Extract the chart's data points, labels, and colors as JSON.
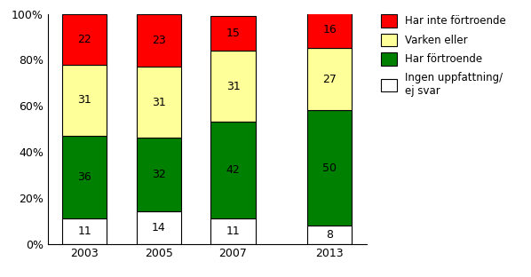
{
  "categories": [
    "2003",
    "2005",
    "2007",
    "2013"
  ],
  "segments": {
    "ingen": [
      11,
      14,
      11,
      8
    ],
    "har_fortroende": [
      36,
      32,
      42,
      50
    ],
    "varken": [
      31,
      31,
      31,
      27
    ],
    "har_inte": [
      22,
      23,
      15,
      16
    ]
  },
  "colors": {
    "ingen": "#ffffff",
    "har_fortroende": "#008000",
    "varken": "#ffff99",
    "har_inte": "#ff0000"
  },
  "legend_labels": [
    "Har inte förtroende",
    "Varken eller",
    "Har förtroende",
    "Ingen uppfattning/\nej svar"
  ],
  "bar_width": 0.6,
  "bar_positions": [
    0,
    1,
    2,
    3.3
  ],
  "ylim": [
    0,
    100
  ],
  "yticks": [
    0,
    20,
    40,
    60,
    80,
    100
  ],
  "yticklabels": [
    "0%",
    "20%",
    "40%",
    "60%",
    "80%",
    "100%"
  ],
  "figsize": [
    5.98,
    3.12
  ],
  "dpi": 100,
  "bg_color": "#ffffff",
  "border_color": "#000000",
  "text_fontsize": 9,
  "legend_fontsize": 8.5
}
